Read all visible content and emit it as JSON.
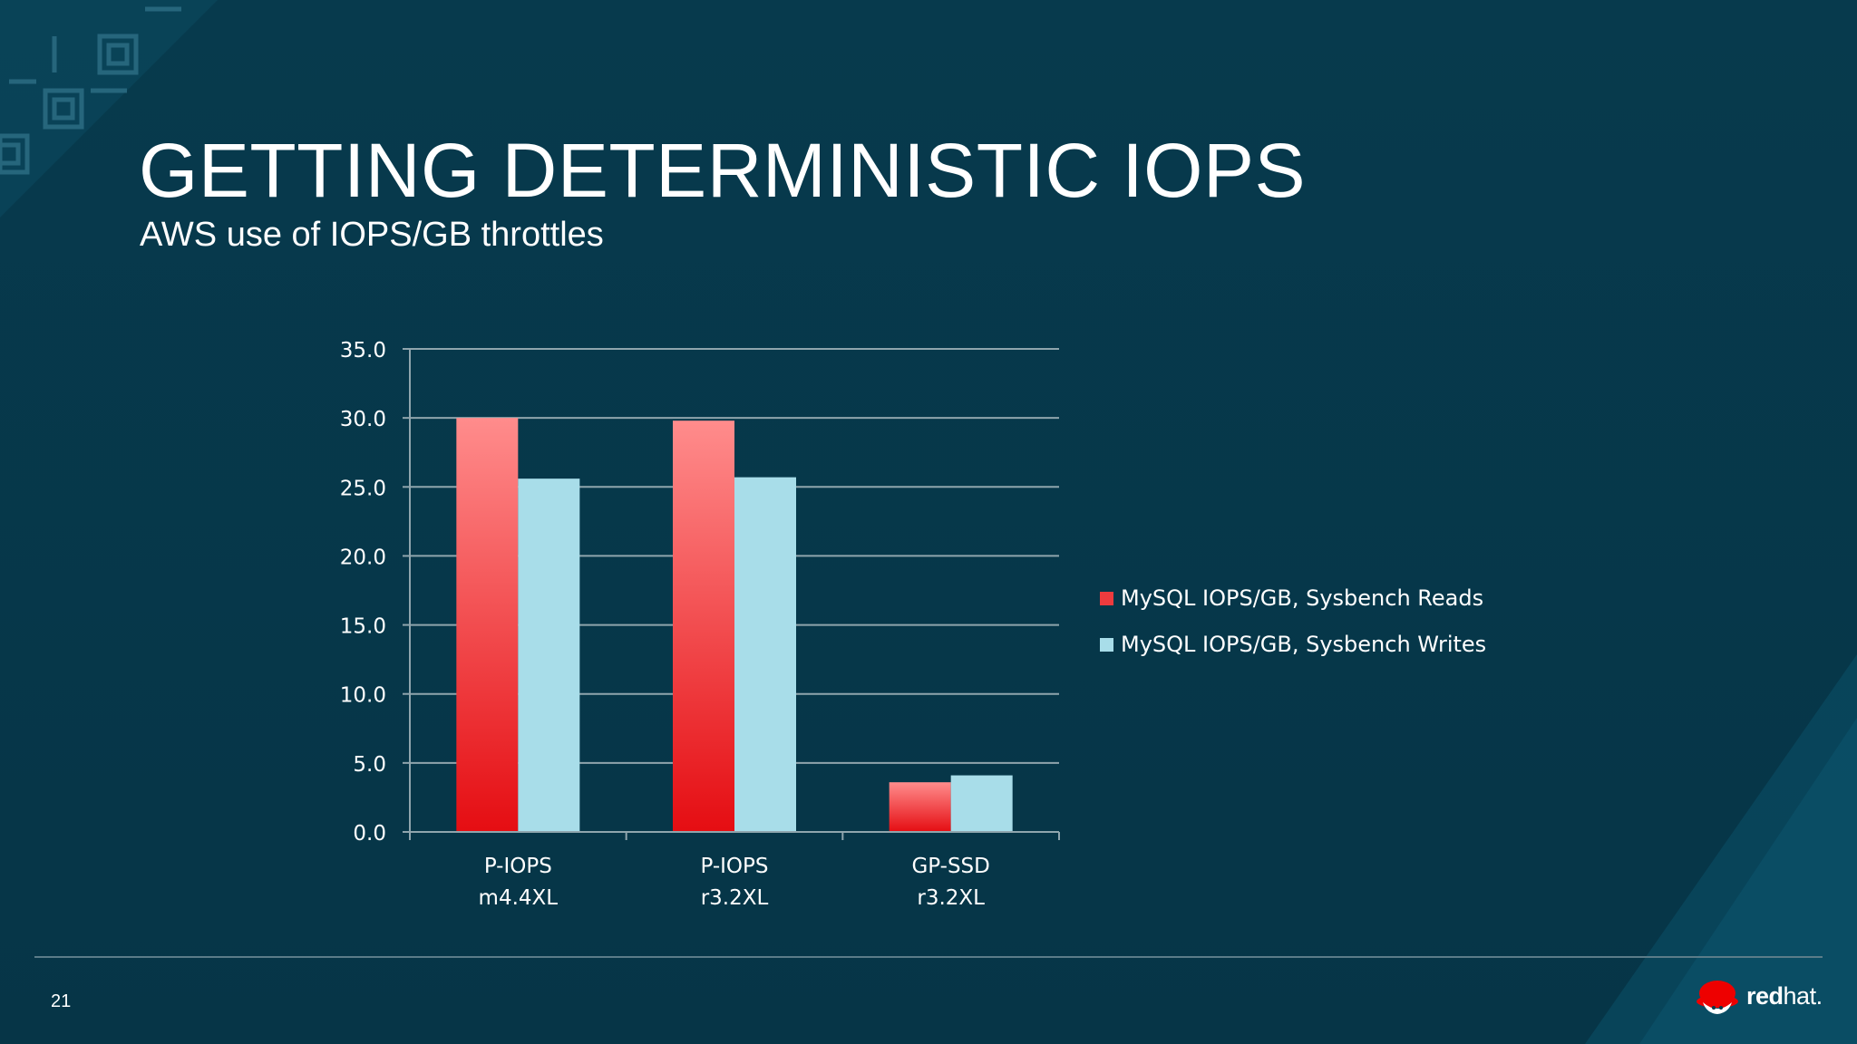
{
  "slide": {
    "title": "GETTING DETERMINISTIC IOPS",
    "subtitle": "AWS use of IOPS/GB throttles",
    "page_number": "21",
    "brand_bold": "red",
    "brand_light": "hat."
  },
  "colors": {
    "background": "#073a4d",
    "reads": "#e8141a",
    "reads_light": "#ff8a8a",
    "writes": "#a8dde9",
    "gridline": "#8fa5ad"
  },
  "chart_data": {
    "type": "bar",
    "categories": [
      [
        "P-IOPS",
        "m4.4XL"
      ],
      [
        "P-IOPS",
        "r3.2XL"
      ],
      [
        "GP-SSD",
        "r3.2XL"
      ]
    ],
    "series": [
      {
        "name": "MySQL IOPS/GB, Sysbench Reads",
        "values": [
          30.0,
          29.8,
          3.6
        ]
      },
      {
        "name": "MySQL IOPS/GB, Sysbench Writes",
        "values": [
          25.6,
          25.7,
          4.1
        ]
      }
    ],
    "ylim": [
      0,
      35
    ],
    "yticks": [
      "0.0",
      "5.0",
      "10.0",
      "15.0",
      "20.0",
      "25.0",
      "30.0",
      "35.0"
    ],
    "grid": true,
    "legend": "right"
  }
}
